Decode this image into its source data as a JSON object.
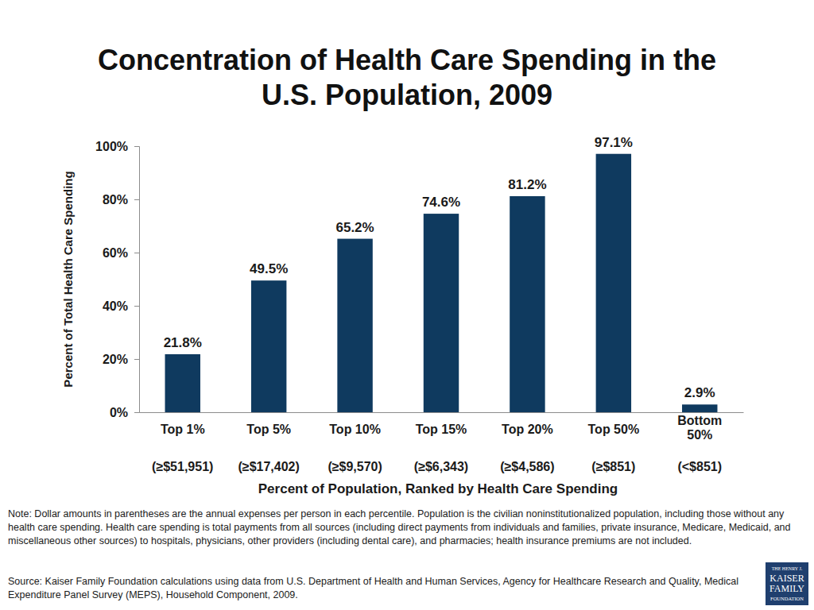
{
  "chart_data": {
    "type": "bar",
    "title": "Concentration of Health Care Spending in the U.S. Population, 2009",
    "y_label": "Percent of Total Health Care Spending",
    "x_label": "Percent of Population, Ranked by Health Care Spending",
    "categories": [
      "Top 1%",
      "Top 5%",
      "Top 10%",
      "Top 15%",
      "Top 20%",
      "Top 50%",
      "Bottom 50%"
    ],
    "category_sublabels": [
      "(≥$51,951)",
      "(≥$17,402)",
      "(≥$9,570)",
      "(≥$6,343)",
      "(≥$4,586)",
      "(≥$851)",
      "(<$851)"
    ],
    "values": [
      21.8,
      49.5,
      65.2,
      74.6,
      81.2,
      97.1,
      2.9
    ],
    "value_labels": [
      "21.8%",
      "49.5%",
      "65.2%",
      "74.6%",
      "81.2%",
      "97.1%",
      "2.9%"
    ],
    "data_labels": true,
    "color": "#0f3a5f",
    "grid": false,
    "ylim": [
      0,
      100
    ],
    "yticks": [
      {
        "value": 0,
        "label": "0%"
      },
      {
        "value": 20,
        "label": "20%"
      },
      {
        "value": 40,
        "label": "40%"
      },
      {
        "value": 60,
        "label": "60%"
      },
      {
        "value": 80,
        "label": "80%"
      },
      {
        "value": 100,
        "label": "100%"
      }
    ],
    "note": "Note: Dollar amounts in parentheses are the annual expenses per person in each percentile. Population is the civilian noninstitutionalized population, including those without any health care spending. Health care spending is total payments from all sources (including direct payments from individuals and families, private insurance, Medicare, Medicaid, and miscellaneous other sources) to hospitals, physicians, other providers (including dental care), and pharmacies; health insurance premiums are not included.",
    "source": "Source: Kaiser Family Foundation calculations using data from U.S. Department of Health and Human Services, Agency for Healthcare Research and Quality, Medical Expenditure Panel Survey (MEPS), Household Component, 2009.",
    "logo": [
      "THE HENRY J.",
      "KAISER",
      "FAMILY",
      "FOUNDATION"
    ]
  }
}
